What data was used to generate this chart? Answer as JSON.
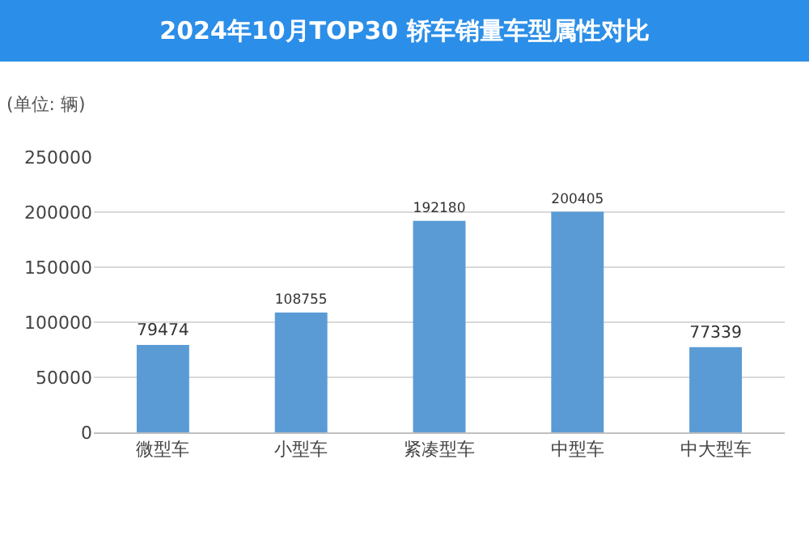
{
  "chart_data": {
    "type": "bar",
    "title": "2024年10月TOP30 轿车销量车型属性对比",
    "ylabel": "(单位: 辆)",
    "categories": [
      "微型车",
      "小型车",
      "紧凑型车",
      "中型车",
      "中大型车"
    ],
    "values": [
      79474,
      108755,
      192180,
      200405,
      77339
    ],
    "color": "#5b9bd5",
    "ylim": [
      0,
      250000
    ],
    "yticks": [
      0,
      50000,
      100000,
      150000,
      200000,
      250000
    ],
    "grid": "y",
    "data_labels": true
  }
}
